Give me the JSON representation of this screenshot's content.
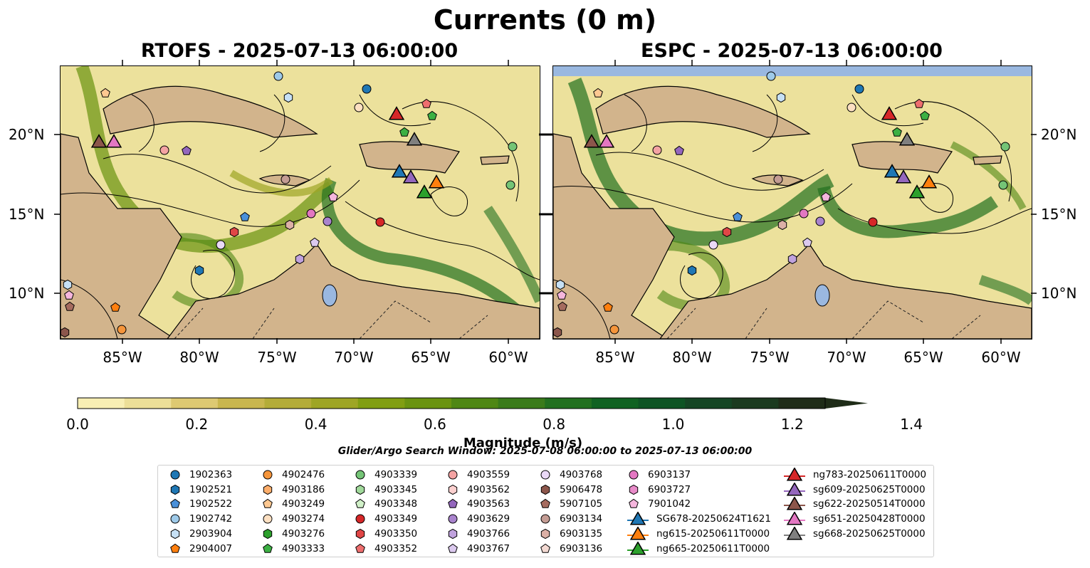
{
  "title": "Currents (0 m)",
  "panels": [
    {
      "id": "rtofs",
      "label": "RTOFS - 2025-07-13 06:00:00"
    },
    {
      "id": "espc",
      "label": "ESPC - 2025-07-13 06:00:00"
    }
  ],
  "lon_ticks": [
    "85°W",
    "80°W",
    "75°W",
    "70°W",
    "65°W",
    "60°W"
  ],
  "lat_ticks": [
    "20°N",
    "15°N",
    "10°N"
  ],
  "colorbar": {
    "label": "Magnitude (m/s)",
    "ticks": [
      "0.0",
      "0.2",
      "0.4",
      "0.6",
      "0.8",
      "1.0",
      "1.2",
      "1.4"
    ],
    "colors": [
      "#f8efb4",
      "#ecdf98",
      "#ddc972",
      "#c9b64e",
      "#b4ac38",
      "#9ea525",
      "#819e12",
      "#6a9310",
      "#4f8714",
      "#3a7b1a",
      "#22701f",
      "#106222",
      "#0e5424",
      "#154524",
      "#1b3a1f",
      "#1f2c18"
    ]
  },
  "search_window": "Glider/Argo Search Window: 2025-07-08 06:00:00 to 2025-07-13 06:00:00",
  "legend": [
    {
      "label": "1902363",
      "marker": "circle",
      "color": "#1f77b4"
    },
    {
      "label": "1902521",
      "marker": "hexagon",
      "color": "#1f77b4"
    },
    {
      "label": "1902522",
      "marker": "pentagon",
      "color": "#4a90d9"
    },
    {
      "label": "1902742",
      "marker": "circle",
      "color": "#9ecae9"
    },
    {
      "label": "2903904",
      "marker": "hexagon",
      "color": "#c6e0f5"
    },
    {
      "label": "2904007",
      "marker": "pentagon",
      "color": "#ff7f0e"
    },
    {
      "label": "4902476",
      "marker": "circle",
      "color": "#f5953b"
    },
    {
      "label": "4903186",
      "marker": "hexagon",
      "color": "#fdae6b"
    },
    {
      "label": "4903249",
      "marker": "pentagon",
      "color": "#fdc891"
    },
    {
      "label": "4903274",
      "marker": "circle",
      "color": "#fde0c2"
    },
    {
      "label": "4903276",
      "marker": "hexagon",
      "color": "#2ca02c"
    },
    {
      "label": "4903333",
      "marker": "pentagon",
      "color": "#3cb043"
    },
    {
      "label": "4903339",
      "marker": "circle",
      "color": "#74c476"
    },
    {
      "label": "4903345",
      "marker": "hexagon",
      "color": "#a1d99b"
    },
    {
      "label": "4903348",
      "marker": "pentagon",
      "color": "#d0f0c8"
    },
    {
      "label": "4903349",
      "marker": "circle",
      "color": "#d62728"
    },
    {
      "label": "4903350",
      "marker": "hexagon",
      "color": "#e04646"
    },
    {
      "label": "4903352",
      "marker": "pentagon",
      "color": "#ee6e6e"
    },
    {
      "label": "4903559",
      "marker": "circle",
      "color": "#f4a3a3"
    },
    {
      "label": "4903562",
      "marker": "hexagon",
      "color": "#fcd0cf"
    },
    {
      "label": "4903563",
      "marker": "pentagon",
      "color": "#9467bd"
    },
    {
      "label": "4903629",
      "marker": "circle",
      "color": "#a983cd"
    },
    {
      "label": "4903766",
      "marker": "hexagon",
      "color": "#c0a2dd"
    },
    {
      "label": "4903767",
      "marker": "pentagon",
      "color": "#dbc9ee"
    },
    {
      "label": "4903768",
      "marker": "circle",
      "color": "#ead9f7"
    },
    {
      "label": "5906478",
      "marker": "hexagon",
      "color": "#8c564b"
    },
    {
      "label": "5907105",
      "marker": "pentagon",
      "color": "#a56b5f"
    },
    {
      "label": "6903134",
      "marker": "circle",
      "color": "#c49c94"
    },
    {
      "label": "6903135",
      "marker": "hexagon",
      "color": "#dcb0a6"
    },
    {
      "label": "6903136",
      "marker": "pentagon",
      "color": "#f3d9d2"
    },
    {
      "label": "6903137",
      "marker": "circle",
      "color": "#e377c2"
    },
    {
      "label": "6903727",
      "marker": "hexagon",
      "color": "#e88bc9"
    },
    {
      "label": "7901042",
      "marker": "pentagon",
      "color": "#f5b6dd"
    },
    {
      "label": "SG678-20250624T1621",
      "marker": "triangle",
      "color": "#1f77b4"
    },
    {
      "label": "ng615-20250611T0000",
      "marker": "triangle",
      "color": "#ff7f0e"
    },
    {
      "label": "ng665-20250611T0000",
      "marker": "triangle",
      "color": "#2ca02c"
    },
    {
      "label": "ng783-20250611T0000",
      "marker": "triangle",
      "color": "#d62728"
    },
    {
      "label": "sg609-20250625T0000",
      "marker": "triangle",
      "color": "#9467bd"
    },
    {
      "label": "sg622-20250514T0000",
      "marker": "triangle",
      "color": "#8c564b"
    },
    {
      "label": "sg651-20250428T0000",
      "marker": "triangle",
      "color": "#e377c2"
    },
    {
      "label": "sg668-20250625T0000",
      "marker": "triangle",
      "color": "#7f7f7f"
    }
  ],
  "map_colors": {
    "land": "#d2b48c",
    "lake": "#9ab8e0",
    "coast": "#000000"
  }
}
